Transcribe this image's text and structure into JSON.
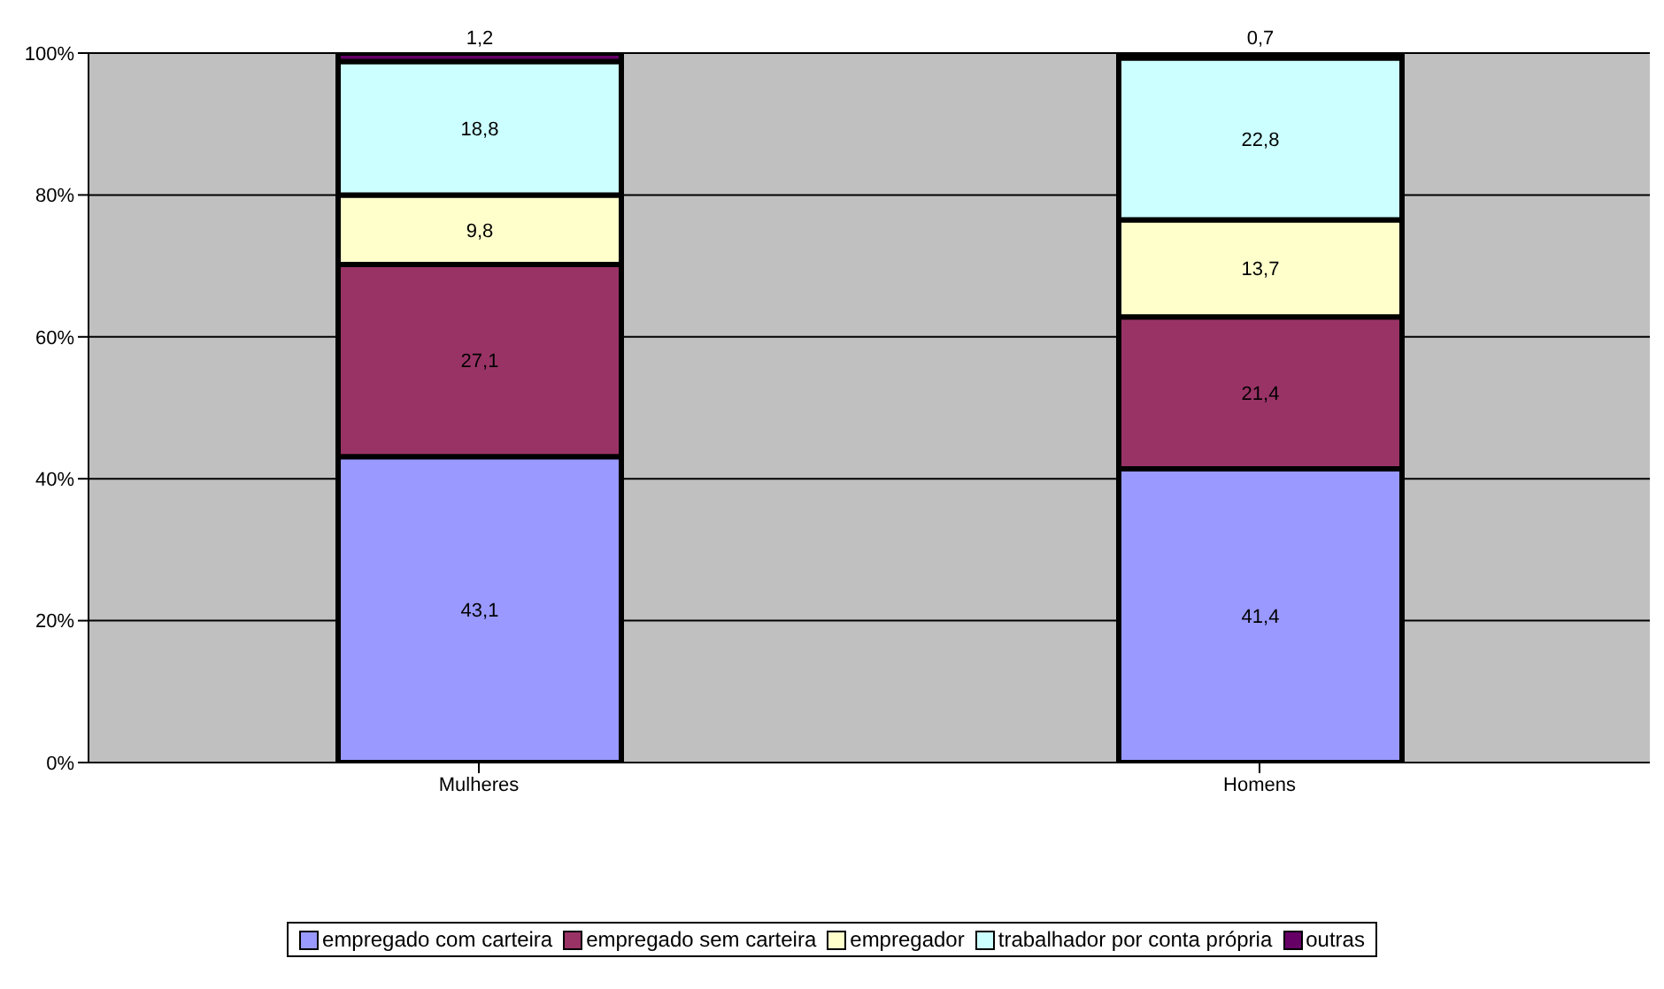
{
  "chart_data": {
    "type": "bar",
    "stacked": true,
    "categories": [
      "Mulheres",
      "Homens"
    ],
    "series": [
      {
        "name": "empregado com carteira",
        "color": "#9999ff",
        "values": [
          43.1,
          41.4
        ],
        "value_labels": [
          "43,1",
          "41,4"
        ]
      },
      {
        "name": "empregado sem carteira",
        "color": "#993366",
        "values": [
          27.1,
          21.4
        ],
        "value_labels": [
          "27,1",
          "21,4"
        ]
      },
      {
        "name": "empregador",
        "color": "#ffffcc",
        "values": [
          9.8,
          13.7
        ],
        "value_labels": [
          "9,8",
          "13,7"
        ]
      },
      {
        "name": "trabalhador por conta própria",
        "color": "#ccffff",
        "values": [
          18.8,
          22.8
        ],
        "value_labels": [
          "18,8",
          "22,8"
        ]
      },
      {
        "name": "outras",
        "color": "#660066",
        "values": [
          1.2,
          0.7
        ],
        "value_labels": [
          "1,2",
          "0,7"
        ]
      }
    ],
    "ylim": [
      0,
      100
    ],
    "yticks": [
      {
        "value": 0,
        "label": "0%"
      },
      {
        "value": 20,
        "label": "20%"
      },
      {
        "value": 40,
        "label": "40%"
      },
      {
        "value": 60,
        "label": "60%"
      },
      {
        "value": 80,
        "label": "80%"
      },
      {
        "value": 100,
        "label": "100%"
      }
    ],
    "grid": "y",
    "legend": "bottom"
  }
}
